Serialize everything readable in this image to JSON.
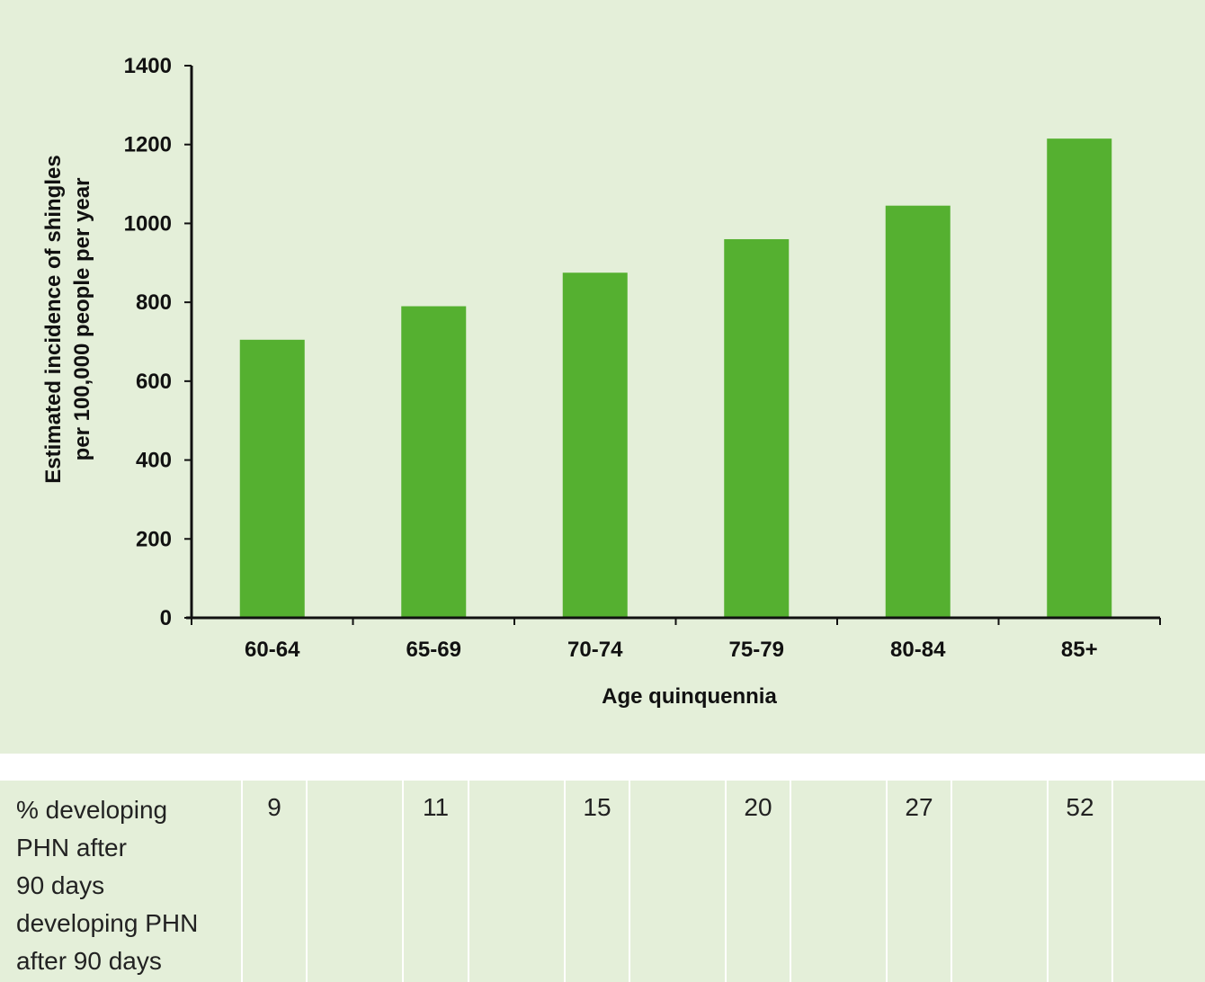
{
  "chart_data": {
    "type": "bar",
    "categories": [
      "60-64",
      "65-69",
      "70-74",
      "75-79",
      "80-84",
      "85+"
    ],
    "values": [
      705,
      790,
      875,
      960,
      1045,
      1215
    ],
    "title": "",
    "xlabel": "Age quinquennia",
    "ylabel_lines": [
      "Estimated incidence of shingles",
      "per 100,000 people per year"
    ],
    "ylim": [
      0,
      1400
    ],
    "yticks": [
      0,
      200,
      400,
      600,
      800,
      1000,
      1200,
      1400
    ],
    "bar_color": "#55b030",
    "grid": false
  },
  "table": {
    "row_label_lines": [
      "% developing",
      "PHN after",
      "90 days",
      "developing PHN",
      "after 90 days"
    ],
    "values": [
      "9",
      "11",
      "15",
      "20",
      "27",
      "52"
    ]
  },
  "colors": {
    "panel_background": "#e4efd9",
    "axis": "#111111"
  }
}
